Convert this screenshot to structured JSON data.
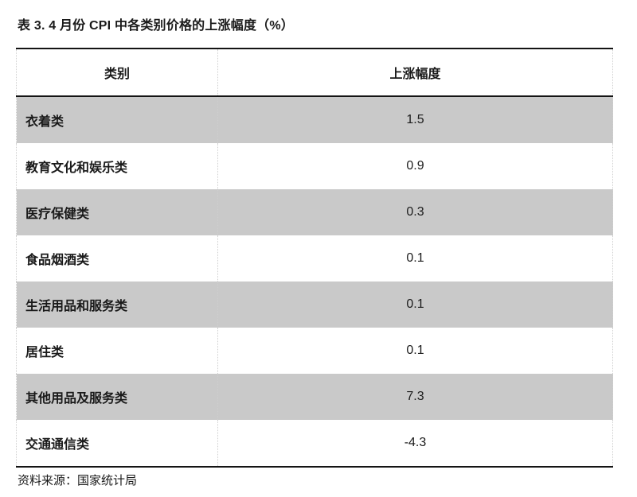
{
  "title": "表 3. 4 月份 CPI 中各类别价格的上涨幅度（%）",
  "table": {
    "headers": {
      "category": "类别",
      "value": "上涨幅度"
    },
    "rows": [
      {
        "category": "衣着类",
        "value": "1.5"
      },
      {
        "category": "教育文化和娱乐类",
        "value": "0.9"
      },
      {
        "category": "医疗保健类",
        "value": "0.3"
      },
      {
        "category": "食品烟酒类",
        "value": "0.1"
      },
      {
        "category": "生活用品和服务类",
        "value": "0.1"
      },
      {
        "category": "居住类",
        "value": "0.1"
      },
      {
        "category": "其他用品及服务类",
        "value": "7.3"
      },
      {
        "category": "交通通信类",
        "value": "-4.3"
      }
    ],
    "colors": {
      "row_shaded": "#c9c9c9",
      "row_plain": "#ffffff",
      "strong_border": "#141414",
      "dotted_border": "#cfcfcf",
      "text": "#1a1a1a"
    }
  },
  "footer": {
    "source": "资料来源：国家统计局"
  }
}
